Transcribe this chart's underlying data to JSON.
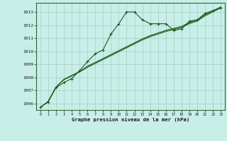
{
  "title": "Graphe pression niveau de la mer (hPa)",
  "background_color": "#c8eee8",
  "grid_color": "#aaccc4",
  "line_color": "#1a5c1a",
  "xlim": [
    -0.5,
    23.5
  ],
  "ylim": [
    1005.5,
    1013.7
  ],
  "yticks": [
    1006,
    1007,
    1008,
    1009,
    1010,
    1011,
    1012,
    1013
  ],
  "xticks": [
    0,
    1,
    2,
    3,
    4,
    5,
    6,
    7,
    8,
    9,
    10,
    11,
    12,
    13,
    14,
    15,
    16,
    17,
    18,
    19,
    20,
    21,
    22,
    23
  ],
  "series1": [
    [
      0,
      1005.7
    ],
    [
      1,
      1006.1
    ],
    [
      2,
      1007.2
    ],
    [
      3,
      1007.6
    ],
    [
      4,
      1007.9
    ],
    [
      5,
      1008.5
    ],
    [
      6,
      1009.2
    ],
    [
      7,
      1009.8
    ],
    [
      8,
      1010.1
    ],
    [
      9,
      1011.3
    ],
    [
      10,
      1012.1
    ],
    [
      11,
      1013.0
    ],
    [
      12,
      1013.0
    ],
    [
      13,
      1012.4
    ],
    [
      14,
      1012.1
    ],
    [
      15,
      1012.1
    ],
    [
      16,
      1012.1
    ],
    [
      17,
      1011.6
    ],
    [
      18,
      1011.7
    ],
    [
      19,
      1012.3
    ],
    [
      20,
      1012.4
    ],
    [
      21,
      1012.9
    ],
    [
      22,
      1013.1
    ],
    [
      23,
      1013.3
    ]
  ],
  "series2": [
    [
      0,
      1005.7
    ],
    [
      1,
      1006.15
    ],
    [
      2,
      1007.25
    ],
    [
      3,
      1007.8
    ],
    [
      4,
      1008.1
    ],
    [
      5,
      1008.4
    ],
    [
      6,
      1008.75
    ],
    [
      7,
      1009.05
    ],
    [
      8,
      1009.35
    ],
    [
      9,
      1009.65
    ],
    [
      10,
      1009.95
    ],
    [
      11,
      1010.25
    ],
    [
      12,
      1010.55
    ],
    [
      13,
      1010.85
    ],
    [
      14,
      1011.1
    ],
    [
      15,
      1011.3
    ],
    [
      16,
      1011.5
    ],
    [
      17,
      1011.65
    ],
    [
      18,
      1011.8
    ],
    [
      19,
      1012.1
    ],
    [
      20,
      1012.3
    ],
    [
      21,
      1012.7
    ],
    [
      22,
      1013.0
    ],
    [
      23,
      1013.3
    ]
  ],
  "series3": [
    [
      0,
      1005.7
    ],
    [
      1,
      1006.15
    ],
    [
      2,
      1007.25
    ],
    [
      3,
      1007.82
    ],
    [
      4,
      1008.12
    ],
    [
      5,
      1008.42
    ],
    [
      6,
      1008.8
    ],
    [
      7,
      1009.1
    ],
    [
      8,
      1009.4
    ],
    [
      9,
      1009.7
    ],
    [
      10,
      1010.0
    ],
    [
      11,
      1010.3
    ],
    [
      12,
      1010.6
    ],
    [
      13,
      1010.9
    ],
    [
      14,
      1011.15
    ],
    [
      15,
      1011.35
    ],
    [
      16,
      1011.55
    ],
    [
      17,
      1011.7
    ],
    [
      18,
      1011.85
    ],
    [
      19,
      1012.15
    ],
    [
      20,
      1012.35
    ],
    [
      21,
      1012.75
    ],
    [
      22,
      1013.05
    ],
    [
      23,
      1013.35
    ]
  ],
  "series4": [
    [
      0,
      1005.7
    ],
    [
      1,
      1006.15
    ],
    [
      2,
      1007.25
    ],
    [
      3,
      1007.85
    ],
    [
      4,
      1008.15
    ],
    [
      5,
      1008.45
    ],
    [
      6,
      1008.85
    ],
    [
      7,
      1009.15
    ],
    [
      8,
      1009.45
    ],
    [
      9,
      1009.75
    ],
    [
      10,
      1010.05
    ],
    [
      11,
      1010.35
    ],
    [
      12,
      1010.65
    ],
    [
      13,
      1010.95
    ],
    [
      14,
      1011.2
    ],
    [
      15,
      1011.4
    ],
    [
      16,
      1011.6
    ],
    [
      17,
      1011.75
    ],
    [
      18,
      1011.9
    ],
    [
      19,
      1012.2
    ],
    [
      20,
      1012.4
    ],
    [
      21,
      1012.8
    ],
    [
      22,
      1013.1
    ],
    [
      23,
      1013.4
    ]
  ]
}
